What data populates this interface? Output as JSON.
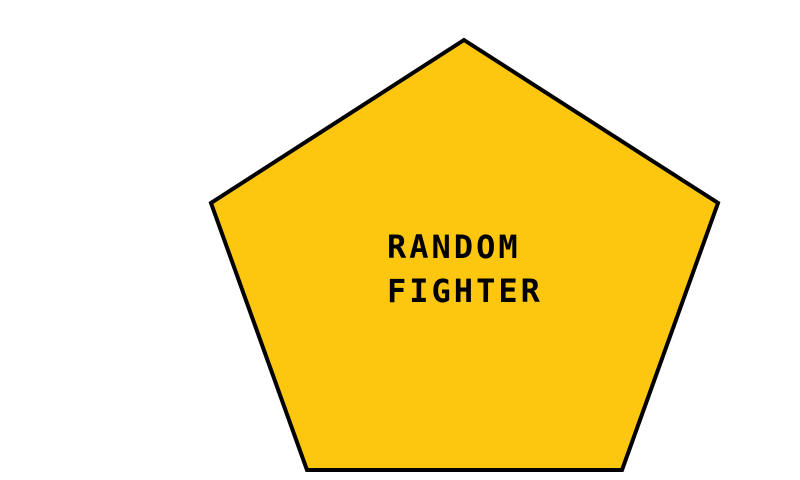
{
  "screen": {
    "background_color": "#ffffff"
  },
  "random_fighter": {
    "label_line_1": "RANDOM",
    "label_line_2": "FIGHTER",
    "fill_color": "#fdc70f",
    "stroke_color": "#000000",
    "shape": "pentagon"
  }
}
